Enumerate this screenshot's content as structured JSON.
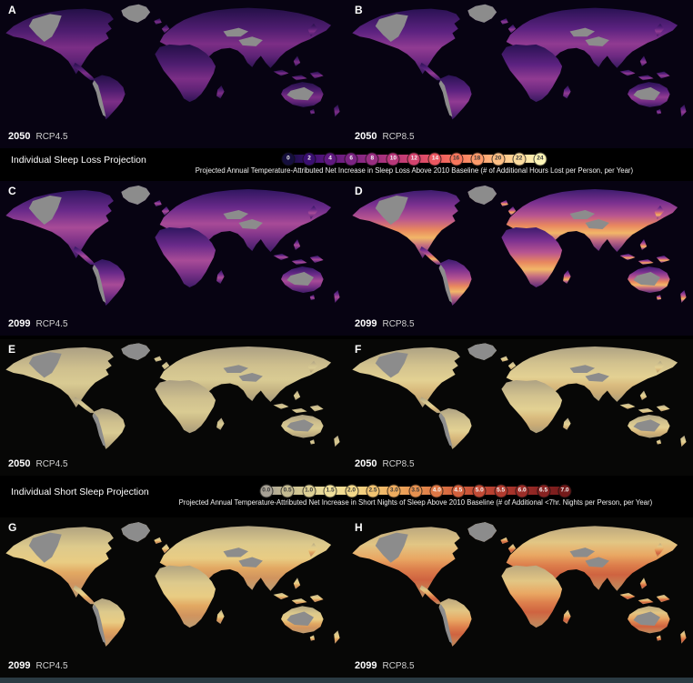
{
  "panels": [
    {
      "letter": "A",
      "year": "2050",
      "scenario": "RCP4.5"
    },
    {
      "letter": "B",
      "year": "2050",
      "scenario": "RCP8.5"
    },
    {
      "letter": "C",
      "year": "2099",
      "scenario": "RCP4.5"
    },
    {
      "letter": "D",
      "year": "2099",
      "scenario": "RCP8.5"
    },
    {
      "letter": "E",
      "year": "2050",
      "scenario": "RCP4.5"
    },
    {
      "letter": "F",
      "year": "2050",
      "scenario": "RCP8.5"
    },
    {
      "letter": "G",
      "year": "2099",
      "scenario": "RCP4.5"
    },
    {
      "letter": "H",
      "year": "2099",
      "scenario": "RCP8.5"
    }
  ],
  "colorbars": [
    {
      "title": "Individual Sleep Loss Projection",
      "caption": "Projected Annual Temperature-Attributed Net Increase in Sleep Loss Above 2010 Baseline (# of Additional Hours Lost per Person, per Year)",
      "ticks": [
        {
          "value": "0",
          "color": "#150f3d"
        },
        {
          "value": "2",
          "color": "#3a0f70"
        },
        {
          "value": "4",
          "color": "#5f187f"
        },
        {
          "value": "6",
          "color": "#7b2382"
        },
        {
          "value": "8",
          "color": "#982d80"
        },
        {
          "value": "10",
          "color": "#b73779"
        },
        {
          "value": "12",
          "color": "#d3436e"
        },
        {
          "value": "14",
          "color": "#eb5760"
        },
        {
          "value": "16",
          "color": "#f8765c"
        },
        {
          "value": "18",
          "color": "#fd9a6a"
        },
        {
          "value": "20",
          "color": "#febf84"
        },
        {
          "value": "22",
          "color": "#fddc9e"
        },
        {
          "value": "24",
          "color": "#fcf4b6"
        }
      ]
    },
    {
      "title": "Individual Short Sleep Projection",
      "caption": "Projected Annual Temperature-Attributed Net Increase in Short Nights of Sleep Above 2010 Baseline (# of Additional <7hr. Nights per Person, per Year)",
      "ticks": [
        {
          "value": "0.0",
          "color": "#a8a296"
        },
        {
          "value": "0.5",
          "color": "#c5bb92"
        },
        {
          "value": "1.0",
          "color": "#ddd096"
        },
        {
          "value": "1.5",
          "color": "#f0e09c"
        },
        {
          "value": "2.0",
          "color": "#f3d88a"
        },
        {
          "value": "2.5",
          "color": "#f2c472"
        },
        {
          "value": "3.0",
          "color": "#eeac5f"
        },
        {
          "value": "3.5",
          "color": "#e69150"
        },
        {
          "value": "4.0",
          "color": "#dd7745"
        },
        {
          "value": "4.5",
          "color": "#d15f3c"
        },
        {
          "value": "5.0",
          "color": "#c24a35"
        },
        {
          "value": "5.5",
          "color": "#b03a2e"
        },
        {
          "value": "6.0",
          "color": "#9c2d28"
        },
        {
          "value": "6.5",
          "color": "#872221"
        },
        {
          "value": "7.0",
          "color": "#741a1a"
        }
      ]
    }
  ],
  "colors": {
    "background": "#000000",
    "nodata_gray": "#8c8c8c",
    "bottom_strip": "#2b3b43"
  }
}
